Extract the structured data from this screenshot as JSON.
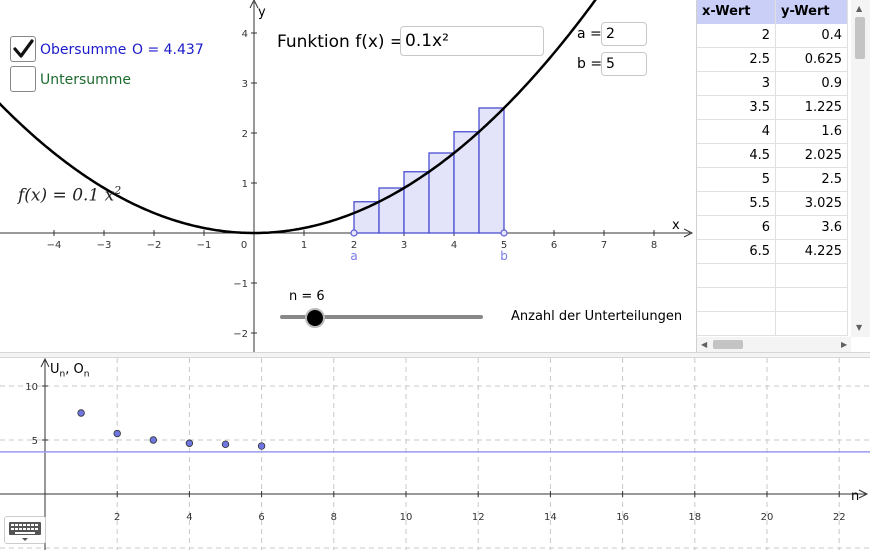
{
  "graphics1": {
    "x_axis_label": "x",
    "y_axis_label": "y",
    "x_ticks": [
      "−4",
      "−3",
      "−2",
      "−1",
      "0",
      "1",
      "2",
      "3",
      "4",
      "5",
      "6",
      "7",
      "8"
    ],
    "y_ticks": [
      "4",
      "3",
      "2",
      "1",
      "−1",
      "−2"
    ],
    "point_a_label": "a",
    "point_b_label": "b",
    "func_formula": "f(x)  =  0.1 x",
    "func_exponent": "2"
  },
  "controls": {
    "obersumme": {
      "label": "Obersumme",
      "checked": true,
      "value_text": "O = 4.437"
    },
    "untersumme": {
      "label": "Untersumme",
      "checked": false
    },
    "function_label": "Funktion f(x) =",
    "function_value": "0.1x²",
    "a_label": "a =",
    "a_value": "2",
    "b_label": "b =",
    "b_value": "5",
    "slider_text": "n = 6",
    "slider_caption": "Anzahl der Unterteilungen",
    "slider": {
      "min": 1,
      "max": 30,
      "value": 6
    }
  },
  "spreadsheet": {
    "headers": [
      "x-Wert",
      "y-Wert"
    ],
    "rows": [
      [
        "2",
        "0.4"
      ],
      [
        "2.5",
        "0.625"
      ],
      [
        "3",
        "0.9"
      ],
      [
        "3.5",
        "1.225"
      ],
      [
        "4",
        "1.6"
      ],
      [
        "4.5",
        "2.025"
      ],
      [
        "5",
        "2.5"
      ],
      [
        "5.5",
        "3.025"
      ],
      [
        "6",
        "3.6"
      ],
      [
        "6.5",
        "4.225"
      ]
    ],
    "empty_rows": 3
  },
  "graphics2": {
    "y_axis_label_main": "U",
    "y_axis_label_sub1": "n",
    "y_axis_label_mid": ", O",
    "y_axis_label_sub2": "n",
    "x_axis_label": "n",
    "x_ticks": [
      "2",
      "4",
      "6",
      "8",
      "10",
      "12",
      "14",
      "16",
      "18",
      "20",
      "22"
    ],
    "y_ticks": [
      "10",
      "5"
    ]
  },
  "chart_data": {
    "type": "scatter",
    "title": "",
    "xlabel": "n",
    "ylabel": "U_n, O_n",
    "xlim": [
      0,
      23
    ],
    "ylim": [
      -3,
      13
    ],
    "x": [
      1,
      2,
      3,
      4,
      5,
      6
    ],
    "series": [
      {
        "values": [
          7.5,
          5.6,
          5.0,
          4.7,
          4.6,
          4.44
        ]
      }
    ],
    "reference_line_y": 3.9,
    "grid": true
  },
  "colors": {
    "rect_fill": "#e3e4f9",
    "rect_stroke": "#4a4fd0",
    "point": "#7076e0",
    "blue_text": "#1b1bcc",
    "green_text": "#1e6b30",
    "ref_line": "#9a9af0"
  },
  "icons": {
    "checkbox": "check-icon",
    "keyboard": "keyboard-icon"
  }
}
